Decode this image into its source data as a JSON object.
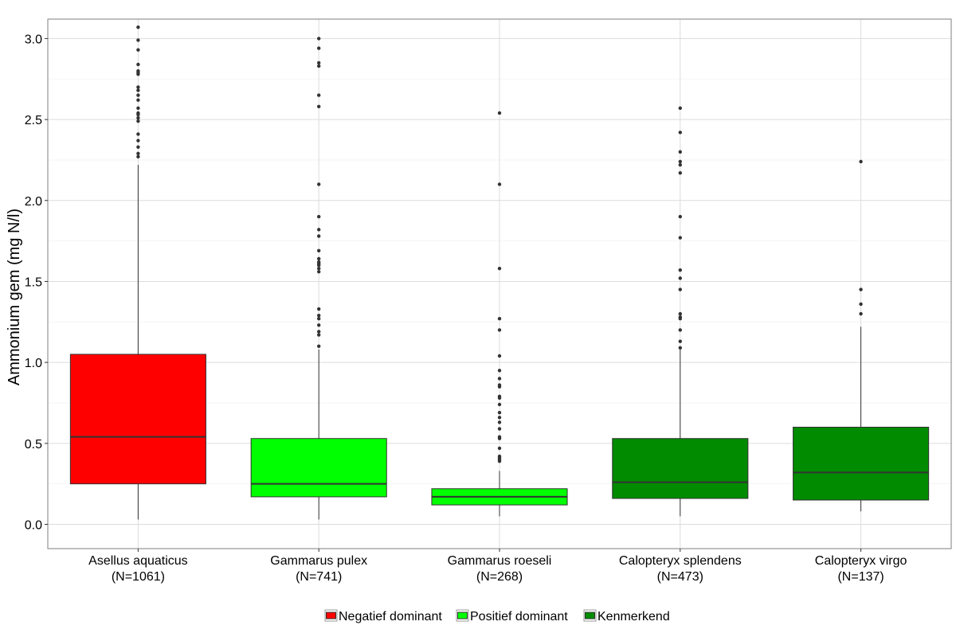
{
  "chart_data": {
    "type": "boxplot",
    "title": "",
    "xlabel": "",
    "ylabel": "Ammonium gem (mg N/l)",
    "ylim": [
      -0.15,
      3.12
    ],
    "yticks": [
      0.0,
      0.5,
      1.0,
      1.5,
      2.0,
      2.5,
      3.0
    ],
    "ytick_labels": [
      "0.0",
      "0.5",
      "1.0",
      "1.5",
      "2.0",
      "2.5",
      "3.0"
    ],
    "grid": true,
    "legend_position": "bottom",
    "legend": [
      {
        "label": "Negatief dominant",
        "color": "#ff0000"
      },
      {
        "label": "Positief dominant",
        "color": "#00ff00"
      },
      {
        "label": "Kenmerkend",
        "color": "#008b00"
      }
    ],
    "categories": [
      {
        "label": "Asellus aquaticus",
        "n_label": "(N=1061)",
        "group": "Negatief dominant",
        "color": "#ff0000",
        "whisker_low": 0.03,
        "q1": 0.25,
        "median": 0.54,
        "q3": 1.05,
        "whisker_high": 2.22,
        "outliers": [
          2.27,
          2.29,
          2.33,
          2.37,
          2.41,
          2.49,
          2.51,
          2.53,
          2.54,
          2.57,
          2.62,
          2.65,
          2.68,
          2.7,
          2.78,
          2.79,
          2.8,
          2.84,
          2.93,
          2.99,
          3.07
        ]
      },
      {
        "label": "Gammarus pulex",
        "n_label": "(N=741)",
        "group": "Positief dominant",
        "color": "#00ff00",
        "whisker_low": 0.03,
        "q1": 0.17,
        "median": 0.25,
        "q3": 0.53,
        "whisker_high": 1.08,
        "outliers": [
          1.1,
          1.17,
          1.19,
          1.23,
          1.27,
          1.29,
          1.33,
          1.56,
          1.58,
          1.6,
          1.61,
          1.62,
          1.64,
          1.69,
          1.78,
          1.82,
          1.9,
          2.1,
          2.58,
          2.65,
          2.83,
          2.85,
          2.94,
          3.0
        ]
      },
      {
        "label": "Gammarus roeseli",
        "n_label": "(N=268)",
        "group": "Positief dominant",
        "color": "#00ff00",
        "whisker_low": 0.05,
        "q1": 0.12,
        "median": 0.17,
        "q3": 0.22,
        "whisker_high": 0.33,
        "outliers": [
          0.39,
          0.4,
          0.41,
          0.42,
          0.47,
          0.53,
          0.54,
          0.59,
          0.63,
          0.66,
          0.69,
          0.74,
          0.78,
          0.79,
          0.85,
          0.86,
          0.9,
          0.95,
          1.04,
          1.2,
          1.27,
          1.58,
          2.1,
          2.54
        ]
      },
      {
        "label": "Calopteryx splendens",
        "n_label": "(N=473)",
        "group": "Kenmerkend",
        "color": "#008b00",
        "whisker_low": 0.05,
        "q1": 0.16,
        "median": 0.26,
        "q3": 0.53,
        "whisker_high": 1.08,
        "outliers": [
          1.09,
          1.13,
          1.2,
          1.27,
          1.28,
          1.3,
          1.45,
          1.52,
          1.57,
          1.77,
          1.9,
          2.17,
          2.22,
          2.24,
          2.3,
          2.42,
          2.57
        ]
      },
      {
        "label": "Calopteryx virgo",
        "n_label": "(N=137)",
        "group": "Kenmerkend",
        "color": "#008b00",
        "whisker_low": 0.08,
        "q1": 0.15,
        "median": 0.32,
        "q3": 0.6,
        "whisker_high": 1.22,
        "outliers": [
          1.3,
          1.36,
          1.45,
          2.24
        ]
      }
    ]
  }
}
